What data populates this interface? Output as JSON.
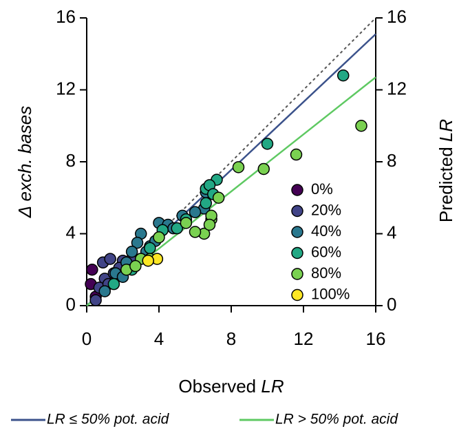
{
  "chart_data": {
    "type": "scatter",
    "ylabel": "Δ exch. bases",
    "xlabel": [
      "Observed",
      "LR"
    ],
    "y2label": [
      "Predicted",
      "LR"
    ],
    "xlim": [
      0,
      16
    ],
    "ylim": [
      0,
      16
    ],
    "y2lim": [
      0,
      16
    ],
    "xticks": [
      0,
      4,
      8,
      12,
      16
    ],
    "yticks": [
      0,
      4,
      8,
      12,
      16
    ],
    "y2ticks": [
      0,
      4,
      8,
      12,
      16
    ],
    "series": [
      {
        "name": "0%",
        "color": "#440154",
        "x": [
          0.23,
          0.3,
          0.5
        ],
        "values": [
          1.2,
          2.0,
          0.5
        ]
      },
      {
        "name": "20%",
        "color": "#414487",
        "x": [
          0.9,
          1.3,
          1.0,
          1.5,
          2.0,
          2.2,
          0.7,
          1.8,
          2.5,
          0.5,
          1.2
        ],
        "values": [
          2.4,
          2.6,
          1.5,
          1.8,
          2.5,
          2.2,
          1.0,
          2.1,
          2.6,
          0.3,
          1.2
        ]
      },
      {
        "name": "40%",
        "color": "#2a788e",
        "x": [
          3.0,
          2.8,
          3.5,
          4.0,
          4.5,
          2.5,
          3.3,
          6.6,
          5.3,
          4.8,
          2.2,
          1.6,
          6.5,
          6.0,
          3.8,
          1.0,
          2.0,
          3.0
        ],
        "values": [
          4.0,
          3.5,
          3.3,
          4.6,
          4.5,
          3.0,
          3.0,
          6.3,
          5.0,
          4.3,
          2.4,
          1.8,
          5.4,
          5.2,
          3.6,
          0.8,
          1.6,
          2.6
        ]
      },
      {
        "name": "60%",
        "color": "#22a884",
        "x": [
          7.2,
          6.6,
          6.8,
          5.5,
          4.2,
          3.5,
          2.5,
          1.5,
          14.2,
          10.0,
          6.6,
          7.0,
          5.0
        ],
        "values": [
          7.0,
          6.5,
          6.7,
          4.8,
          4.2,
          3.2,
          2.0,
          1.2,
          12.8,
          9.0,
          5.7,
          6.2,
          4.3
        ]
      },
      {
        "name": "80%",
        "color": "#7ad151",
        "x": [
          8.4,
          9.8,
          7.3,
          6.5,
          6.0,
          6.9,
          6.9,
          6.8,
          4.0,
          3.0,
          2.2,
          3.5,
          2.7,
          11.6,
          15.2,
          5.5
        ],
        "values": [
          7.7,
          7.6,
          6.0,
          4.0,
          4.1,
          4.8,
          5.0,
          4.5,
          3.8,
          2.6,
          2.0,
          2.6,
          2.2,
          8.4,
          10.0,
          4.6
        ]
      },
      {
        "name": "100%",
        "color": "#fde725",
        "x": [
          3.9,
          3.4
        ],
        "values": [
          2.6,
          2.5
        ]
      }
    ],
    "lines": [
      {
        "color": "#555555",
        "dashed": true,
        "x": [
          0,
          16
        ],
        "values": [
          0,
          16
        ]
      },
      {
        "name": "LR ≤ 50% pot. acid",
        "color": "#3b528b",
        "x": [
          0,
          16
        ],
        "values": [
          0,
          15.1
        ]
      },
      {
        "name": "LR > 50% pot. acid",
        "color": "#5ec962",
        "x": [
          0,
          16
        ],
        "values": [
          0,
          12.7
        ]
      }
    ]
  }
}
